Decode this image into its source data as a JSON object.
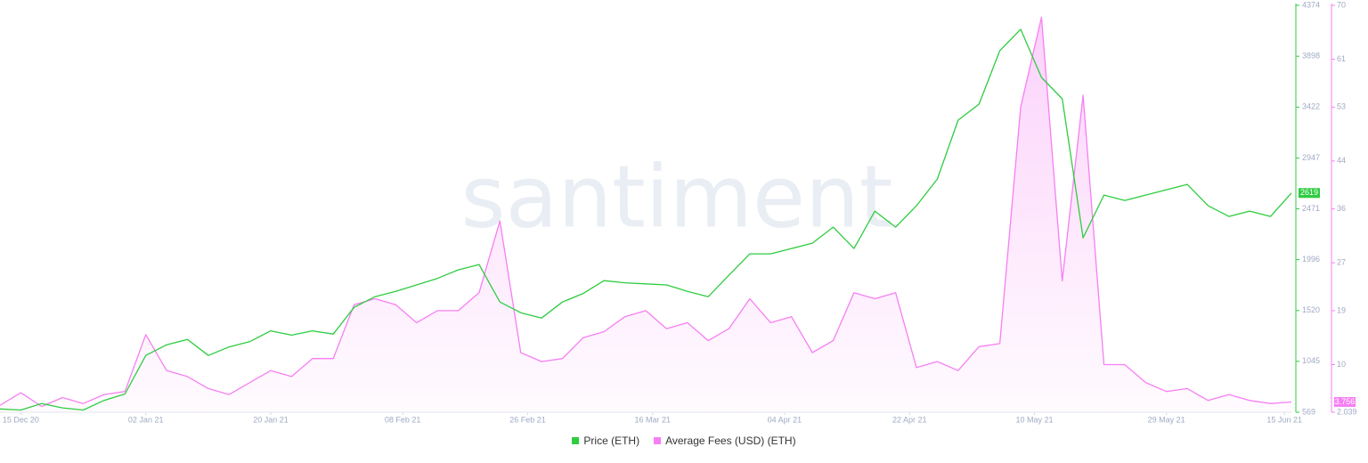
{
  "chart_data": {
    "type": "line",
    "watermark": "santiment",
    "x": [
      "2020-12-12",
      "2020-12-15",
      "2020-12-18",
      "2020-12-21",
      "2020-12-24",
      "2020-12-27",
      "2020-12-30",
      "2021-01-02",
      "2021-01-05",
      "2021-01-08",
      "2021-01-11",
      "2021-01-14",
      "2021-01-17",
      "2021-01-20",
      "2021-01-23",
      "2021-01-26",
      "2021-01-29",
      "2021-02-01",
      "2021-02-04",
      "2021-02-07",
      "2021-02-10",
      "2021-02-13",
      "2021-02-16",
      "2021-02-19",
      "2021-02-22",
      "2021-02-25",
      "2021-02-28",
      "2021-03-03",
      "2021-03-06",
      "2021-03-09",
      "2021-03-12",
      "2021-03-15",
      "2021-03-18",
      "2021-03-21",
      "2021-03-24",
      "2021-03-27",
      "2021-03-30",
      "2021-04-02",
      "2021-04-05",
      "2021-04-08",
      "2021-04-11",
      "2021-04-14",
      "2021-04-17",
      "2021-04-20",
      "2021-04-23",
      "2021-04-26",
      "2021-04-29",
      "2021-05-02",
      "2021-05-05",
      "2021-05-08",
      "2021-05-11",
      "2021-05-14",
      "2021-05-17",
      "2021-05-20",
      "2021-05-23",
      "2021-05-26",
      "2021-05-29",
      "2021-06-01",
      "2021-06-04",
      "2021-06-07",
      "2021-06-10",
      "2021-06-13",
      "2021-06-16"
    ],
    "xlim": [
      "2020-12-12",
      "2021-06-16"
    ],
    "xticks": [
      {
        "value": "2020-12-15",
        "label": "15 Dec 20"
      },
      {
        "value": "2021-01-02",
        "label": "02 Jan 21"
      },
      {
        "value": "2021-01-20",
        "label": "20 Jan 21"
      },
      {
        "value": "2021-02-08",
        "label": "08 Feb 21"
      },
      {
        "value": "2021-02-26",
        "label": "26 Feb 21"
      },
      {
        "value": "2021-03-16",
        "label": "16 Mar 21"
      },
      {
        "value": "2021-04-04",
        "label": "04 Apr 21"
      },
      {
        "value": "2021-04-22",
        "label": "22 Apr 21"
      },
      {
        "value": "2021-05-10",
        "label": "10 May 21"
      },
      {
        "value": "2021-05-29",
        "label": "29 May 21"
      },
      {
        "value": "2021-06-15",
        "label": "15 Jun 21"
      }
    ],
    "ylim": [
      569,
      4374
    ],
    "yticks": [
      569,
      1045,
      1520,
      1996,
      2471,
      2947,
      3422,
      3898,
      4374
    ],
    "y2lim": [
      2.039,
      70
    ],
    "y2ticks": [
      2.039,
      10,
      19,
      27,
      36,
      44,
      53,
      61,
      70
    ],
    "series": [
      {
        "name": "Price (ETH)",
        "color": "#2ecc40",
        "values": [
          600,
          590,
          650,
          610,
          590,
          680,
          740,
          1100,
          1200,
          1250,
          1100,
          1180,
          1230,
          1330,
          1290,
          1330,
          1300,
          1550,
          1650,
          1700,
          1760,
          1820,
          1900,
          1950,
          1600,
          1500,
          1450,
          1600,
          1680,
          1800,
          1780,
          1770,
          1760,
          1700,
          1650,
          1850,
          2050,
          2050,
          2100,
          2150,
          2300,
          2100,
          2450,
          2300,
          2500,
          2750,
          3300,
          3450,
          3950,
          4150,
          3700,
          3500,
          2200,
          2600,
          2550,
          2600,
          2650,
          2700,
          2500,
          2400,
          2450,
          2400,
          2619
        ]
      },
      {
        "name": "Average Fees (USD) (ETH)",
        "color": "#f67ff3",
        "axis": "y2",
        "area": true,
        "values": [
          3.2,
          5.3,
          3,
          4.5,
          3.5,
          5,
          5.5,
          15,
          9,
          8,
          6,
          5,
          7,
          9,
          8,
          11,
          11,
          20,
          21,
          20,
          17,
          19,
          19,
          22,
          34,
          12,
          10.5,
          11,
          14.5,
          15.5,
          18,
          19,
          16,
          17,
          14,
          16,
          21,
          17,
          18,
          12,
          14,
          22,
          21,
          22,
          9.5,
          10.5,
          9,
          13,
          13.5,
          53,
          68,
          24,
          55,
          10,
          10,
          7,
          5.5,
          6,
          4,
          5,
          4,
          3.5,
          3.756
        ]
      }
    ]
  }
}
